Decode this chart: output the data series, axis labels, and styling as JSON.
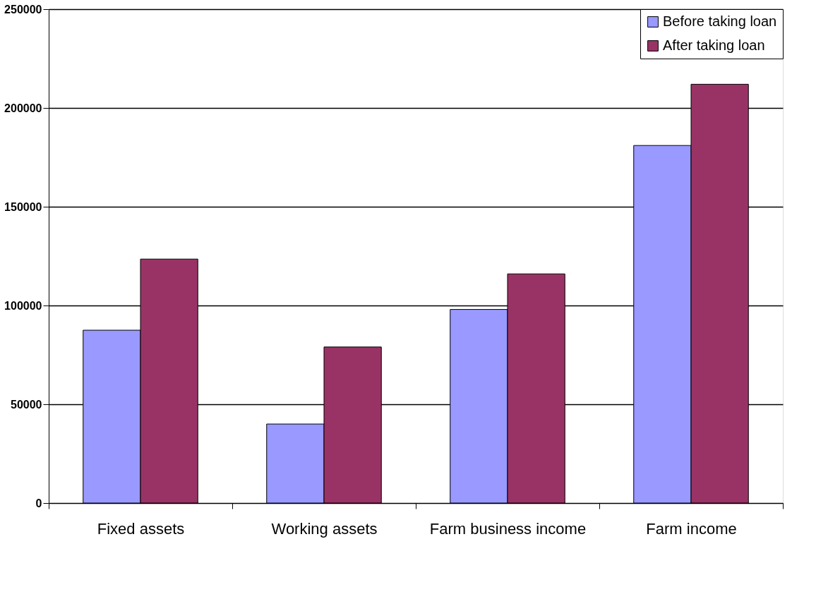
{
  "chart_data": {
    "type": "bar",
    "categories": [
      "Fixed assets",
      "Working assets",
      "Farm business income",
      "Farm income"
    ],
    "series": [
      {
        "name": "Before taking loan",
        "color": "#9999ff",
        "values": [
          87500,
          40000,
          98000,
          181000
        ]
      },
      {
        "name": "After taking loan",
        "color": "#993366",
        "values": [
          123500,
          79000,
          116000,
          212000
        ]
      }
    ],
    "ylim": [
      0,
      250000
    ],
    "yticks": [
      0,
      50000,
      100000,
      150000,
      200000,
      250000
    ],
    "grid": "y",
    "legend": "top right"
  }
}
